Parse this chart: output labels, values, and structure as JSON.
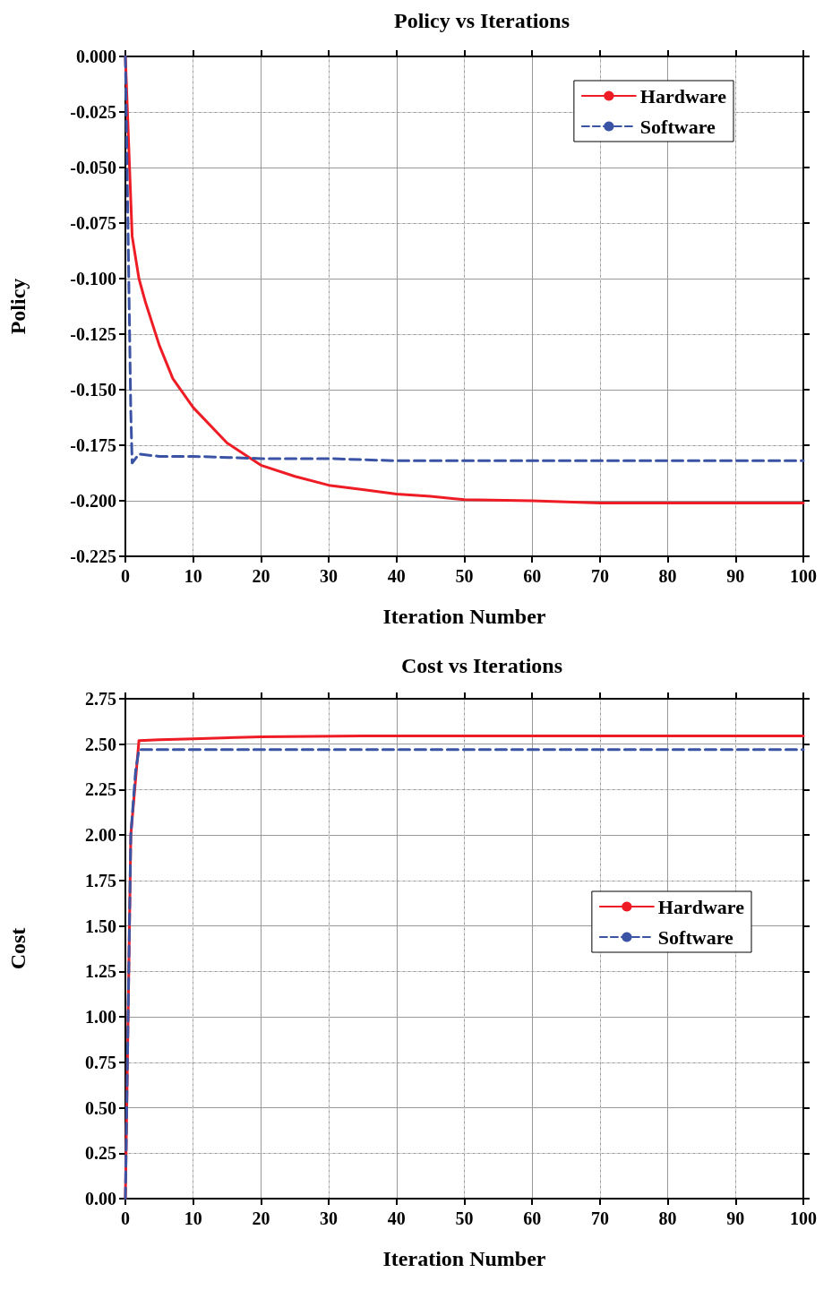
{
  "chart_data": [
    {
      "type": "line",
      "title": "Policy vs Iterations",
      "xlabel": "Iteration Number",
      "ylabel": "Policy",
      "xlim": [
        0,
        100
      ],
      "xticks": [
        0,
        10,
        20,
        30,
        40,
        50,
        60,
        70,
        80,
        90,
        100
      ],
      "ylim": [
        -0.225,
        0
      ],
      "yticks": [
        {
          "value": 0,
          "label": "0.000"
        },
        {
          "value": -0.025,
          "label": "-0.025"
        },
        {
          "value": -0.05,
          "label": "-0.050"
        },
        {
          "value": -0.075,
          "label": "-0.075"
        },
        {
          "value": -0.1,
          "label": "-0.100"
        },
        {
          "value": -0.125,
          "label": "-0.125"
        },
        {
          "value": -0.15,
          "label": "-0.150"
        },
        {
          "value": -0.175,
          "label": "-0.175"
        },
        {
          "value": -0.2,
          "label": "-0.200"
        },
        {
          "value": -0.225,
          "label": "-0.225"
        }
      ],
      "grid": true,
      "legend": "top right",
      "marker": "none",
      "series": [
        {
          "name": "Hardware",
          "color": "#ee1c25",
          "line_style": "solid",
          "x": [
            0,
            1,
            2,
            3,
            5,
            7,
            10,
            15,
            20,
            25,
            30,
            35,
            40,
            45,
            50,
            60,
            70,
            80,
            90,
            100
          ],
          "values": [
            0,
            -0.081,
            -0.1,
            -0.111,
            -0.13,
            -0.145,
            -0.158,
            -0.174,
            -0.184,
            -0.189,
            -0.193,
            -0.195,
            -0.197,
            -0.198,
            -0.1995,
            -0.2,
            -0.201,
            -0.201,
            -0.201,
            -0.201
          ]
        },
        {
          "name": "Software",
          "color": "#3a53a4",
          "line_style": "dashed",
          "x": [
            0,
            0.3,
            0.6,
            0.8,
            1,
            2,
            5,
            10,
            20,
            30,
            40,
            60,
            80,
            100
          ],
          "values": [
            0,
            -0.06,
            -0.12,
            -0.16,
            -0.183,
            -0.179,
            -0.18,
            -0.18,
            -0.181,
            -0.181,
            -0.182,
            -0.182,
            -0.182,
            -0.182
          ]
        }
      ]
    },
    {
      "type": "line",
      "title": "Cost vs Iterations",
      "xlabel": "Iteration Number",
      "ylabel": "Cost",
      "xlim": [
        0,
        100
      ],
      "xticks": [
        0,
        10,
        20,
        30,
        40,
        50,
        60,
        70,
        80,
        90,
        100
      ],
      "ylim": [
        0,
        2.75
      ],
      "yticks": [
        {
          "value": 0,
          "label": "0.00"
        },
        {
          "value": 0.25,
          "label": "0.25"
        },
        {
          "value": 0.5,
          "label": "0.50"
        },
        {
          "value": 0.75,
          "label": "0.75"
        },
        {
          "value": 1,
          "label": "1.00"
        },
        {
          "value": 1.25,
          "label": "1.25"
        },
        {
          "value": 1.5,
          "label": "1.50"
        },
        {
          "value": 1.75,
          "label": "1.75"
        },
        {
          "value": 2,
          "label": "2.00"
        },
        {
          "value": 2.25,
          "label": "2.25"
        },
        {
          "value": 2.5,
          "label": "2.50"
        },
        {
          "value": 2.75,
          "label": "2.75"
        }
      ],
      "grid": true,
      "legend": "right",
      "marker": "none",
      "series": [
        {
          "name": "Hardware",
          "color": "#ee1c25",
          "line_style": "solid",
          "x": [
            0,
            0.8,
            2,
            5,
            10,
            20,
            35,
            50,
            100
          ],
          "values": [
            0,
            2.0,
            2.52,
            2.525,
            2.53,
            2.54,
            2.545,
            2.545,
            2.545
          ]
        },
        {
          "name": "Software",
          "color": "#3a53a4",
          "line_style": "dashed",
          "x": [
            0,
            0.8,
            1.5,
            2,
            5,
            100
          ],
          "values": [
            0,
            2.0,
            2.35,
            2.47,
            2.47,
            2.47
          ]
        }
      ]
    }
  ]
}
